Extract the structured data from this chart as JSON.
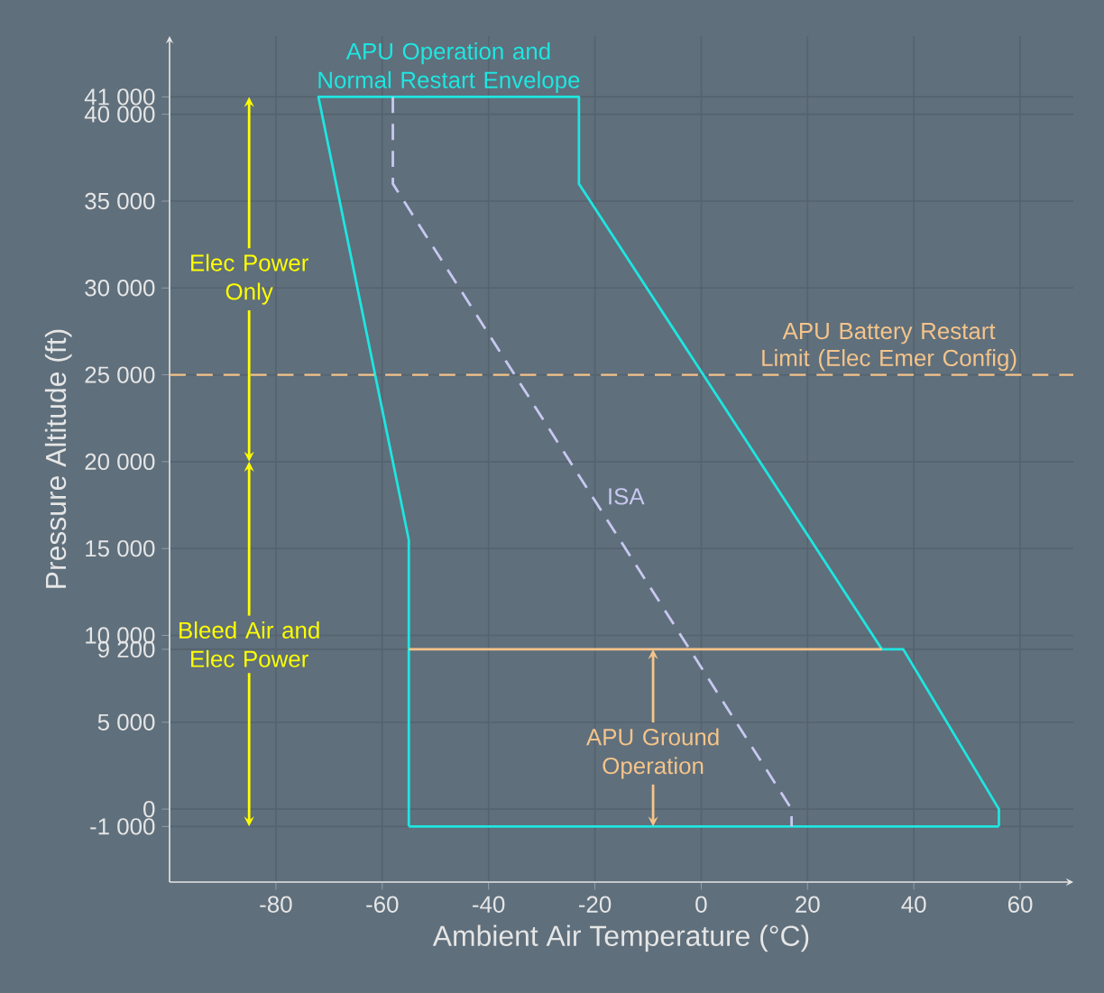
{
  "chart_data": {
    "type": "line",
    "xlabel": "Ambient Air Temperature (°C)",
    "ylabel": "Pressure Altitude (ft)",
    "xlim": [
      -100,
      70
    ],
    "ylim": [
      -4200,
      44500
    ],
    "xticks": [
      -80,
      -60,
      -40,
      -20,
      0,
      20,
      40,
      60
    ],
    "yticks": [
      {
        "value": -1000,
        "label": "-1 000"
      },
      {
        "value": 0,
        "label": "0"
      },
      {
        "value": 5000,
        "label": "5 000"
      },
      {
        "value": 9200,
        "label": "9 200"
      },
      {
        "value": 10000,
        "label": "10 000"
      },
      {
        "value": 15000,
        "label": "15 000"
      },
      {
        "value": 20000,
        "label": "20 000"
      },
      {
        "value": 25000,
        "label": "25 000"
      },
      {
        "value": 30000,
        "label": "30 000"
      },
      {
        "value": 35000,
        "label": "35 000"
      },
      {
        "value": 40000,
        "label": "40 000"
      },
      {
        "value": 41000,
        "label": "41 000"
      }
    ],
    "grid": true,
    "series": [
      {
        "name": "APU Operation and Normal Restart Envelope",
        "color": "#1ee6e0",
        "line_style": "solid",
        "x": [
          -55,
          -55,
          -72,
          -23,
          -23,
          34,
          38,
          56,
          56
        ],
        "values": [
          -1000,
          15500,
          41000,
          41000,
          36000,
          9200,
          9200,
          0,
          -1000
        ]
      },
      {
        "color": "#1ee6e0",
        "line_style": "solid",
        "x": [
          -55,
          56
        ],
        "values": [
          -1000,
          -1000
        ]
      },
      {
        "name": "ISA",
        "color": "#c8c8f0",
        "line_style": "dashed",
        "x": [
          -58,
          -58,
          17,
          17
        ],
        "values": [
          41000,
          36000,
          0,
          -1000
        ]
      },
      {
        "color": "#f5c48a",
        "line_style": "solid",
        "x": [
          -55,
          34
        ],
        "values": [
          9200,
          9200
        ]
      }
    ],
    "annotations": [
      "Elec Power Only",
      "Bleed Air and Elec Power",
      "APU Ground Operation"
    ],
    "ref_lines": [
      {
        "axis": "y",
        "value": 25000,
        "label": "APU Battery Restart Limit (Elec Emer Config)",
        "color": "#f5c48a",
        "line_style": "dashed"
      }
    ]
  }
}
